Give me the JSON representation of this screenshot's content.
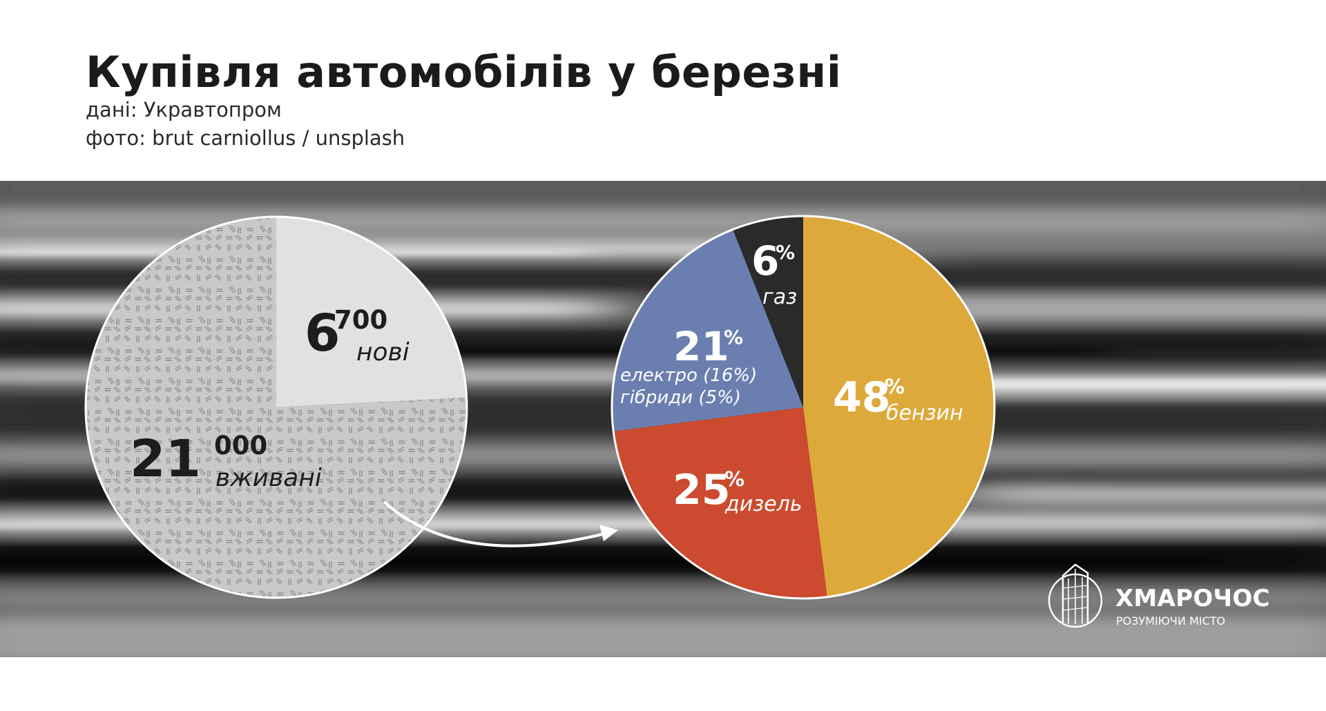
{
  "header": {
    "title": "Купівля автомобілів у березні",
    "source": "дані: Укравтопром",
    "photo_credit": "фото: brut carniollus / unsplash"
  },
  "chart_data": [
    {
      "type": "pie",
      "slices": [
        {
          "key": "new",
          "value": 6700,
          "main": "6",
          "sup": "700",
          "label": "нові",
          "color": "#e1e1e1"
        },
        {
          "key": "used",
          "value": 21000,
          "main": "21",
          "sup": "000",
          "label": "вживані",
          "color": "#c9c9c9"
        }
      ]
    },
    {
      "type": "pie",
      "slices": [
        {
          "key": "petrol",
          "value": 48,
          "main": "48",
          "sup": "%",
          "label": "бензин",
          "color": "#dea93b"
        },
        {
          "key": "diesel",
          "value": 25,
          "main": "25",
          "sup": "%",
          "label": "дизель",
          "color": "#cc4a2f"
        },
        {
          "key": "electric",
          "value": 21,
          "main": "21",
          "sup": "%",
          "label_line1": "електро (16%)",
          "label_line2": "гібриди (5%)",
          "color": "#6a7fb0"
        },
        {
          "key": "gas",
          "value": 6,
          "main": "6",
          "sup": "%",
          "label": "газ",
          "color": "#2a2a2a"
        }
      ]
    }
  ],
  "logo": {
    "name": "ХМАРОЧОС",
    "tagline": "РОЗУМІЮЧИ МІСТО",
    "icon": "skyscraper-icon"
  }
}
